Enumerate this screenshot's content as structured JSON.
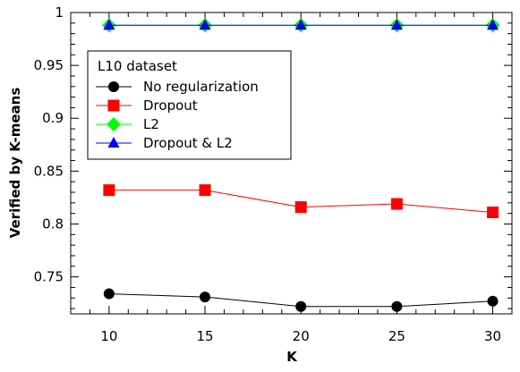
{
  "chart_data": {
    "type": "line",
    "x": [
      10,
      15,
      20,
      25,
      30
    ],
    "xlabel": "K",
    "ylabel": "Verified by K-means",
    "xlim": [
      8,
      31
    ],
    "ylim": [
      0.715,
      1.0
    ],
    "xticks": [
      10,
      15,
      20,
      25,
      30
    ],
    "yticks": [
      0.75,
      0.8,
      0.85,
      0.9,
      0.95,
      1.0
    ],
    "ytick_labels": [
      "0.75",
      "0.8",
      "0.85",
      "0.9",
      "0.95",
      "1"
    ],
    "grid": false,
    "legend": {
      "title": "L10 dataset",
      "placement": "upper-left"
    },
    "series": [
      {
        "name": "No regularization",
        "values": [
          0.734,
          0.731,
          0.722,
          0.722,
          0.727
        ],
        "color": "#000000",
        "marker": "circle"
      },
      {
        "name": "Dropout",
        "values": [
          0.832,
          0.832,
          0.816,
          0.819,
          0.811
        ],
        "color": "#ff0000",
        "marker": "square"
      },
      {
        "name": "L2",
        "values": [
          0.988,
          0.988,
          0.988,
          0.988,
          0.988
        ],
        "color": "#00ff00",
        "marker": "diamond"
      },
      {
        "name": "Dropout & L2",
        "values": [
          0.988,
          0.988,
          0.988,
          0.988,
          0.988
        ],
        "color": "#0000ff",
        "marker": "triangle"
      }
    ]
  }
}
